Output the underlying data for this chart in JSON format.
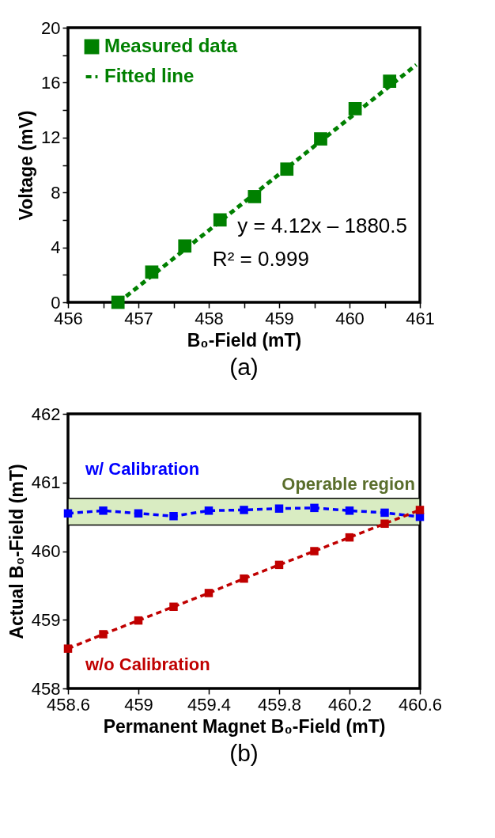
{
  "chart_data": [
    {
      "type": "scatter",
      "title": "(a)",
      "xlabel": "B₀-Field (mT)",
      "ylabel": "Voltage (mV)",
      "xlim": [
        456,
        461
      ],
      "ylim": [
        0,
        20
      ],
      "xticks": [
        456,
        {
          "value": 456.5,
          "label": null
        },
        457,
        {
          "value": 457.5,
          "label": null
        },
        458,
        {
          "value": 458.5,
          "label": null
        },
        459,
        {
          "value": 459.5,
          "label": null
        },
        460,
        {
          "value": 460.5,
          "label": null
        },
        461
      ],
      "yticks": [
        0,
        {
          "value": 2,
          "label": null
        },
        4,
        {
          "value": 6,
          "label": null
        },
        8,
        {
          "value": 10,
          "label": null
        },
        12,
        {
          "value": 14,
          "label": null
        },
        16,
        {
          "value": 18,
          "label": null
        },
        20
      ],
      "grid": false,
      "legend": "top left",
      "annotations": [
        "y = 4.12x – 1880.5",
        "R² = 0.999"
      ],
      "series": [
        {
          "name": "Measured data",
          "type": "scatter",
          "marker": "square",
          "color": "#008000",
          "x": [
            456.71,
            457.19,
            457.66,
            458.16,
            458.65,
            459.11,
            459.59,
            460.08,
            460.57
          ],
          "values": [
            0,
            2.2,
            4.1,
            6.0,
            7.7,
            9.7,
            11.9,
            14.1,
            16.1
          ]
        },
        {
          "name": "Fitted line",
          "type": "line",
          "marker": "none",
          "line_style": "dashed",
          "color": "#008000",
          "x": [
            456.72,
            460.95
          ],
          "values": [
            0,
            17.3
          ]
        }
      ]
    },
    {
      "type": "line",
      "title": "(b)",
      "xlabel": "Permanent Magnet B₀-Field (mT)",
      "ylabel": "Actual B₀-Field (mT)",
      "xlim": [
        458.6,
        460.6
      ],
      "ylim": [
        458,
        462
      ],
      "xticks": [
        458.6,
        459,
        459.4,
        459.8,
        460.2,
        460.6
      ],
      "yticks": [
        458,
        459,
        460,
        461,
        462
      ],
      "grid": false,
      "legend": false,
      "marker": "square",
      "line_style": "dashed",
      "x": [
        458.6,
        458.8,
        459.0,
        459.2,
        459.4,
        459.6,
        459.8,
        460.0,
        460.2,
        460.4,
        460.6
      ],
      "bands": [
        {
          "axis": "y",
          "from": 460.38,
          "to": 460.77,
          "label": "Operable region",
          "color": "#d9ecc2"
        }
      ],
      "series": [
        {
          "name": "w/ Calibration",
          "color": "#0000ff",
          "values": [
            460.55,
            460.59,
            460.55,
            460.51,
            460.59,
            460.6,
            460.62,
            460.63,
            460.59,
            460.56,
            460.5
          ]
        },
        {
          "name": "w/o Calibration",
          "color": "#c00000",
          "values": [
            458.58,
            458.79,
            458.99,
            459.19,
            459.39,
            459.6,
            459.8,
            460.0,
            460.2,
            460.4,
            460.6
          ]
        }
      ]
    }
  ]
}
